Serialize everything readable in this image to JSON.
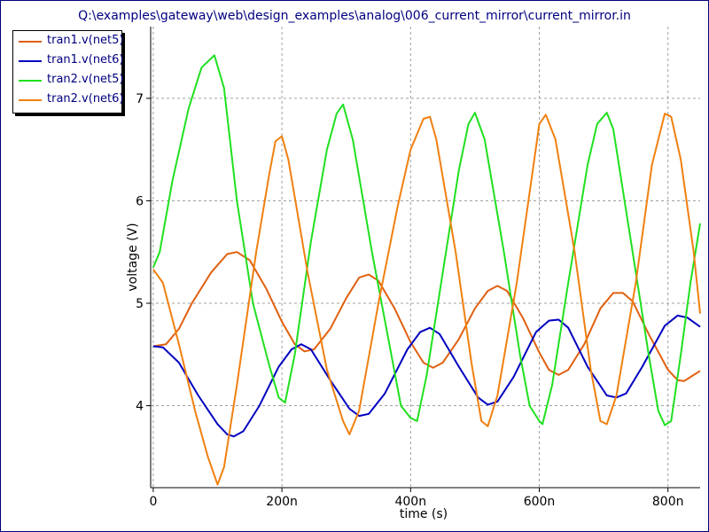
{
  "chart_data": {
    "type": "line",
    "title": "Q:\\examples\\gateway\\web\\design_examples\\analog\\006_current_mirror\\current_mirror.in",
    "xlabel": "time (s)",
    "ylabel": "voltage (V)",
    "xlim": [
      -4,
      850
    ],
    "ylim": [
      3.2,
      7.7
    ],
    "xticks": [
      {
        "value": 0,
        "label": "0"
      },
      {
        "value": 200,
        "label": "200n"
      },
      {
        "value": 400,
        "label": "400n"
      },
      {
        "value": 600,
        "label": "600n"
      },
      {
        "value": 800,
        "label": "800n"
      }
    ],
    "yticks": [
      {
        "value": 4,
        "label": "4"
      },
      {
        "value": 5,
        "label": "5"
      },
      {
        "value": 6,
        "label": "6"
      },
      {
        "value": 7,
        "label": "7"
      }
    ],
    "grid": true,
    "legend_position": "top-left",
    "series": [
      {
        "name": "tran1.v(net5)",
        "color": "#e06010",
        "points": [
          [
            0,
            4.58
          ],
          [
            20,
            4.6
          ],
          [
            40,
            4.75
          ],
          [
            60,
            5.0
          ],
          [
            90,
            5.3
          ],
          [
            115,
            5.48
          ],
          [
            130,
            5.5
          ],
          [
            150,
            5.42
          ],
          [
            175,
            5.15
          ],
          [
            200,
            4.82
          ],
          [
            220,
            4.6
          ],
          [
            235,
            4.53
          ],
          [
            250,
            4.55
          ],
          [
            275,
            4.75
          ],
          [
            300,
            5.05
          ],
          [
            320,
            5.25
          ],
          [
            335,
            5.28
          ],
          [
            350,
            5.22
          ],
          [
            375,
            4.95
          ],
          [
            400,
            4.62
          ],
          [
            420,
            4.42
          ],
          [
            435,
            4.37
          ],
          [
            450,
            4.42
          ],
          [
            475,
            4.65
          ],
          [
            500,
            4.95
          ],
          [
            520,
            5.12
          ],
          [
            535,
            5.17
          ],
          [
            550,
            5.12
          ],
          [
            575,
            4.85
          ],
          [
            600,
            4.52
          ],
          [
            615,
            4.35
          ],
          [
            630,
            4.3
          ],
          [
            645,
            4.35
          ],
          [
            670,
            4.6
          ],
          [
            695,
            4.95
          ],
          [
            715,
            5.1
          ],
          [
            730,
            5.1
          ],
          [
            745,
            5.02
          ],
          [
            770,
            4.7
          ],
          [
            800,
            4.35
          ],
          [
            815,
            4.25
          ],
          [
            825,
            4.24
          ],
          [
            840,
            4.3
          ],
          [
            850,
            4.34
          ]
        ]
      },
      {
        "name": "tran1.v(net6)",
        "color": "#0000c0",
        "points": [
          [
            0,
            4.58
          ],
          [
            15,
            4.57
          ],
          [
            40,
            4.42
          ],
          [
            70,
            4.1
          ],
          [
            100,
            3.82
          ],
          [
            115,
            3.72
          ],
          [
            125,
            3.7
          ],
          [
            140,
            3.75
          ],
          [
            165,
            4.0
          ],
          [
            195,
            4.38
          ],
          [
            215,
            4.55
          ],
          [
            230,
            4.6
          ],
          [
            245,
            4.55
          ],
          [
            275,
            4.25
          ],
          [
            305,
            3.97
          ],
          [
            320,
            3.9
          ],
          [
            335,
            3.92
          ],
          [
            360,
            4.12
          ],
          [
            395,
            4.55
          ],
          [
            415,
            4.72
          ],
          [
            430,
            4.76
          ],
          [
            445,
            4.7
          ],
          [
            475,
            4.38
          ],
          [
            505,
            4.08
          ],
          [
            520,
            4.01
          ],
          [
            535,
            4.04
          ],
          [
            560,
            4.28
          ],
          [
            595,
            4.72
          ],
          [
            615,
            4.83
          ],
          [
            630,
            4.84
          ],
          [
            645,
            4.76
          ],
          [
            675,
            4.38
          ],
          [
            705,
            4.1
          ],
          [
            720,
            4.08
          ],
          [
            735,
            4.12
          ],
          [
            760,
            4.38
          ],
          [
            795,
            4.78
          ],
          [
            815,
            4.88
          ],
          [
            830,
            4.86
          ],
          [
            850,
            4.77
          ]
        ]
      },
      {
        "name": "tran2.v(net5)",
        "color": "#20e020",
        "points": [
          [
            0,
            5.35
          ],
          [
            10,
            5.5
          ],
          [
            30,
            6.2
          ],
          [
            55,
            6.9
          ],
          [
            75,
            7.3
          ],
          [
            95,
            7.42
          ],
          [
            110,
            7.1
          ],
          [
            130,
            6.0
          ],
          [
            155,
            5.0
          ],
          [
            180,
            4.4
          ],
          [
            195,
            4.08
          ],
          [
            205,
            4.03
          ],
          [
            220,
            4.5
          ],
          [
            245,
            5.6
          ],
          [
            270,
            6.5
          ],
          [
            285,
            6.85
          ],
          [
            295,
            6.94
          ],
          [
            310,
            6.6
          ],
          [
            340,
            5.5
          ],
          [
            370,
            4.5
          ],
          [
            385,
            4.0
          ],
          [
            400,
            3.88
          ],
          [
            410,
            3.85
          ],
          [
            425,
            4.3
          ],
          [
            450,
            5.3
          ],
          [
            475,
            6.3
          ],
          [
            490,
            6.75
          ],
          [
            500,
            6.86
          ],
          [
            515,
            6.6
          ],
          [
            545,
            5.5
          ],
          [
            570,
            4.5
          ],
          [
            585,
            4.0
          ],
          [
            600,
            3.85
          ],
          [
            605,
            3.82
          ],
          [
            620,
            4.2
          ],
          [
            645,
            5.2
          ],
          [
            675,
            6.35
          ],
          [
            690,
            6.75
          ],
          [
            705,
            6.86
          ],
          [
            715,
            6.7
          ],
          [
            745,
            5.5
          ],
          [
            770,
            4.5
          ],
          [
            785,
            3.95
          ],
          [
            795,
            3.81
          ],
          [
            805,
            3.85
          ],
          [
            820,
            4.5
          ],
          [
            835,
            5.2
          ],
          [
            850,
            5.78
          ]
        ]
      },
      {
        "name": "tran2.v(net6)",
        "color": "#f08010",
        "points": [
          [
            0,
            5.33
          ],
          [
            15,
            5.2
          ],
          [
            40,
            4.6
          ],
          [
            65,
            3.95
          ],
          [
            85,
            3.5
          ],
          [
            100,
            3.23
          ],
          [
            110,
            3.4
          ],
          [
            130,
            4.2
          ],
          [
            160,
            5.5
          ],
          [
            180,
            6.25
          ],
          [
            190,
            6.58
          ],
          [
            200,
            6.63
          ],
          [
            210,
            6.4
          ],
          [
            240,
            5.3
          ],
          [
            270,
            4.35
          ],
          [
            295,
            3.85
          ],
          [
            305,
            3.72
          ],
          [
            320,
            3.95
          ],
          [
            350,
            5.0
          ],
          [
            380,
            5.95
          ],
          [
            400,
            6.5
          ],
          [
            420,
            6.8
          ],
          [
            430,
            6.82
          ],
          [
            440,
            6.6
          ],
          [
            470,
            5.5
          ],
          [
            495,
            4.4
          ],
          [
            510,
            3.85
          ],
          [
            520,
            3.8
          ],
          [
            535,
            4.1
          ],
          [
            565,
            5.2
          ],
          [
            590,
            6.3
          ],
          [
            600,
            6.75
          ],
          [
            610,
            6.84
          ],
          [
            625,
            6.6
          ],
          [
            655,
            5.5
          ],
          [
            680,
            4.35
          ],
          [
            695,
            3.85
          ],
          [
            705,
            3.82
          ],
          [
            720,
            4.1
          ],
          [
            750,
            5.2
          ],
          [
            775,
            6.35
          ],
          [
            795,
            6.85
          ],
          [
            805,
            6.82
          ],
          [
            820,
            6.4
          ],
          [
            840,
            5.5
          ],
          [
            850,
            4.9
          ]
        ]
      }
    ]
  }
}
